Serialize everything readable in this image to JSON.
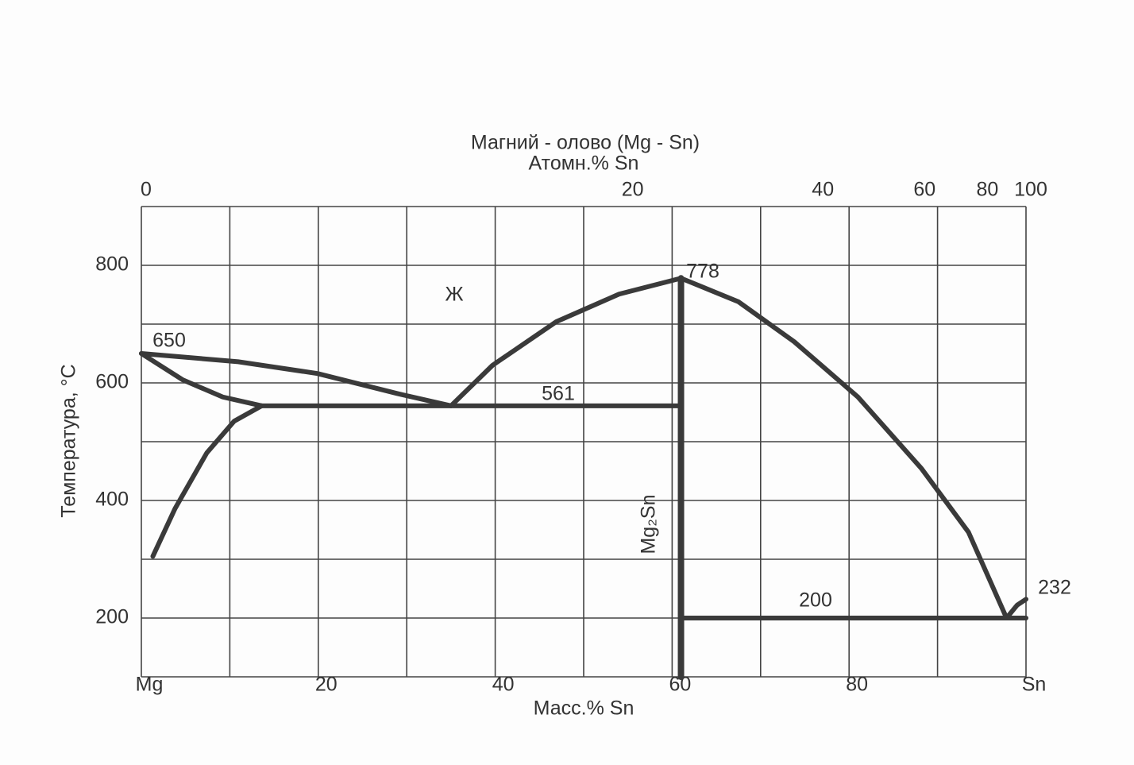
{
  "chart_data": {
    "type": "line",
    "title": "Магний - олово (Mg - Sn)",
    "x2_label": "Атомн.% Sn",
    "x_label": "Масс.% Sn",
    "y_label": "Температура, °C",
    "xlim": [
      0,
      100
    ],
    "ylim": [
      100,
      900
    ],
    "xticks": [
      {
        "value": 0,
        "label": "Mg"
      },
      20,
      40,
      60,
      80,
      {
        "value": 100,
        "label": "Sn"
      }
    ],
    "yticks": [
      200,
      400,
      600,
      800
    ],
    "x2ticks": [
      0,
      {
        "value": 55,
        "label": "20"
      },
      {
        "value": 76.5,
        "label": "40"
      },
      {
        "value": 88,
        "label": "60"
      },
      {
        "value": 95.1,
        "label": "80"
      },
      100
    ],
    "xgrid": [
      0,
      10,
      20,
      30,
      40,
      50,
      60,
      70,
      80,
      90,
      100
    ],
    "ygrid": [
      100,
      200,
      300,
      400,
      500,
      600,
      700,
      800,
      900
    ],
    "grid": true,
    "color": "#3a3a3a",
    "series": [
      {
        "x": [
          0,
          10.95,
          19.9,
          28.9,
          35
        ],
        "values": [
          650,
          636,
          616,
          582,
          561
        ]
      },
      {
        "x": [
          0,
          4.7,
          9.2,
          13.6
        ],
        "values": [
          650,
          605,
          576,
          561
        ]
      },
      {
        "x": [
          13.6,
          10.5,
          7.4,
          3.8,
          1.3
        ],
        "values": [
          561,
          535,
          481,
          386,
          305
        ]
      },
      {
        "x": [
          13.6,
          61
        ],
        "values": [
          561,
          561
        ]
      },
      {
        "x": [
          35,
          39.7,
          46.9,
          54,
          61
        ],
        "values": [
          561,
          630,
          704,
          751,
          778
        ]
      },
      {
        "x": [
          61,
          67.5,
          73.8,
          81,
          88.2,
          93.5,
          97.8
        ],
        "values": [
          778,
          738,
          670,
          576,
          454,
          346,
          200
        ]
      },
      {
        "x": [
          61,
          61
        ],
        "values": [
          778,
          100
        ]
      },
      {
        "x": [
          61,
          100
        ],
        "values": [
          200,
          200
        ]
      },
      {
        "x": [
          97.8,
          99,
          100
        ],
        "values": [
          200,
          222,
          232
        ]
      }
    ],
    "annotations": [
      "650",
      "561",
      "778",
      "200",
      "232",
      "Ж",
      "Mg₂Sn"
    ]
  }
}
